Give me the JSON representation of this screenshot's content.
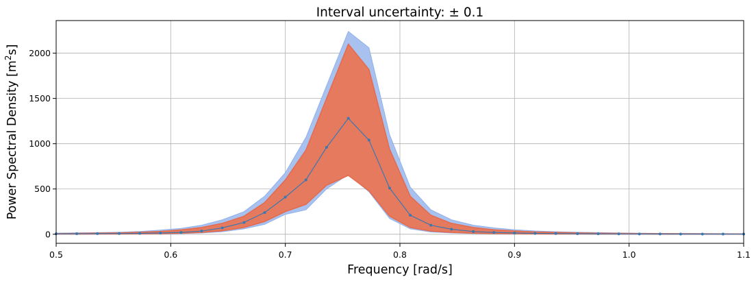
{
  "chart_data": {
    "type": "area",
    "title": "Interval uncertainty: ± 0.1",
    "xlabel": "Frequency [rad/s]",
    "ylabel_main": "Power Spectral Density [m",
    "ylabel_sup": "2",
    "ylabel_tail": "s]",
    "xlim": [
      0.5,
      1.1
    ],
    "ylim": [
      -100,
      2360
    ],
    "xticks": [
      0.5,
      0.6,
      0.7,
      0.8,
      0.9,
      1.0,
      1.1
    ],
    "xtick_labels": [
      "0.5",
      "0.6",
      "0.7",
      "0.8",
      "0.9",
      "1.0",
      "1.1"
    ],
    "yticks": [
      0,
      500,
      1000,
      1500,
      2000
    ],
    "ytick_labels": [
      "0",
      "500",
      "1000",
      "1500",
      "2000"
    ],
    "grid": true,
    "colors": {
      "outer_band": "#a9c1ef",
      "outer_band_edge": "#8fb0ea",
      "inner_band": "#e57a5f",
      "inner_band_edge": "#e46a4c",
      "line": "#3a78b1",
      "grid": "#b0b0b0"
    },
    "x": [
      0.5,
      0.518,
      0.536,
      0.555,
      0.573,
      0.591,
      0.609,
      0.627,
      0.645,
      0.664,
      0.682,
      0.7,
      0.718,
      0.736,
      0.755,
      0.773,
      0.791,
      0.809,
      0.827,
      0.845,
      0.864,
      0.882,
      0.9,
      0.918,
      0.936,
      0.955,
      0.973,
      0.991,
      1.009,
      1.027,
      1.045,
      1.064,
      1.082,
      1.1
    ],
    "series": [
      {
        "role": "central",
        "values": [
          5,
          6,
          7,
          8,
          10,
          14,
          20,
          35,
          70,
          130,
          240,
          410,
          600,
          960,
          1280,
          1040,
          510,
          210,
          100,
          55,
          30,
          20,
          14,
          10,
          8,
          6,
          5,
          4,
          3,
          3,
          2,
          2,
          2,
          2
        ]
      },
      {
        "role": "outer_upper",
        "values": [
          12,
          15,
          18,
          22,
          30,
          45,
          65,
          100,
          160,
          250,
          420,
          680,
          1070,
          1640,
          2240,
          2060,
          1100,
          520,
          270,
          160,
          100,
          70,
          50,
          36,
          28,
          22,
          18,
          14,
          12,
          10,
          9,
          8,
          7,
          6
        ]
      },
      {
        "role": "outer_lower",
        "values": [
          1,
          1,
          2,
          2,
          3,
          5,
          8,
          14,
          28,
          60,
          110,
          220,
          270,
          500,
          660,
          470,
          175,
          60,
          25,
          14,
          8,
          6,
          4,
          3,
          2,
          2,
          1,
          1,
          1,
          1,
          1,
          1,
          1,
          1
        ]
      },
      {
        "role": "inner_upper",
        "values": [
          8,
          10,
          13,
          16,
          22,
          32,
          48,
          75,
          120,
          200,
          350,
          600,
          930,
          1500,
          2100,
          1820,
          940,
          420,
          210,
          120,
          75,
          50,
          36,
          26,
          20,
          15,
          12,
          10,
          8,
          7,
          6,
          5,
          4,
          4
        ]
      },
      {
        "role": "inner_lower",
        "values": [
          2,
          2,
          3,
          3,
          5,
          7,
          11,
          20,
          38,
          75,
          140,
          250,
          330,
          540,
          650,
          480,
          200,
          75,
          35,
          20,
          12,
          8,
          6,
          4,
          3,
          3,
          2,
          2,
          2,
          1,
          1,
          1,
          1,
          1
        ]
      }
    ]
  }
}
